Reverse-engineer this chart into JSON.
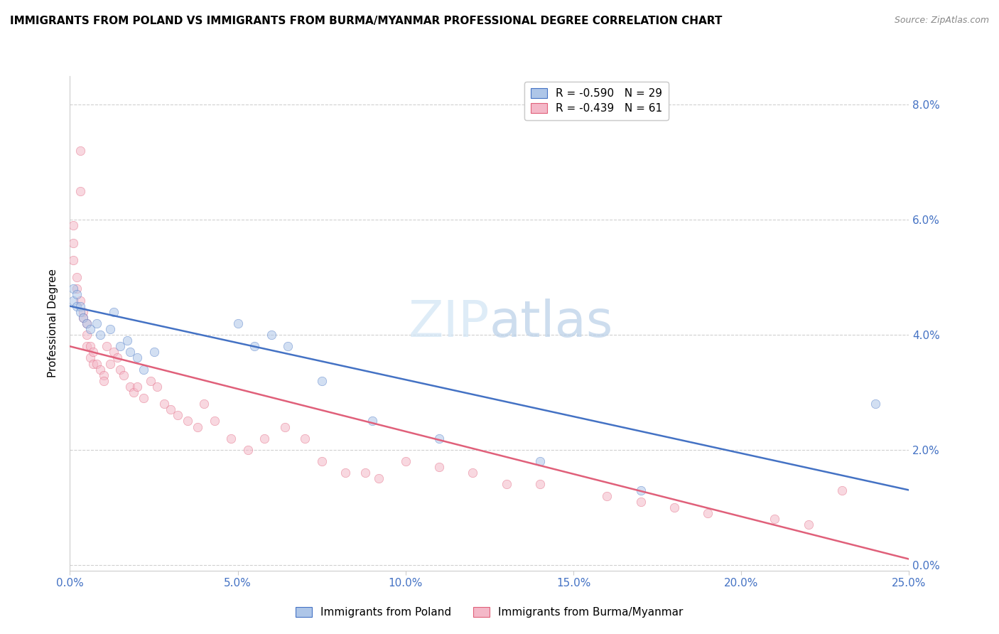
{
  "title": "IMMIGRANTS FROM POLAND VS IMMIGRANTS FROM BURMA/MYANMAR PROFESSIONAL DEGREE CORRELATION CHART",
  "source": "Source: ZipAtlas.com",
  "ylabel": "Professional Degree",
  "right_ytick_labels": [
    "0.0%",
    "2.0%",
    "4.0%",
    "6.0%",
    "8.0%"
  ],
  "right_ytick_values": [
    0.0,
    0.02,
    0.04,
    0.06,
    0.08
  ],
  "xlim": [
    0.0,
    0.25
  ],
  "ylim": [
    -0.001,
    0.085
  ],
  "xtick_labels": [
    "0.0%",
    "5.0%",
    "10.0%",
    "15.0%",
    "20.0%",
    "25.0%"
  ],
  "xtick_values": [
    0.0,
    0.05,
    0.1,
    0.15,
    0.2,
    0.25
  ],
  "legend_labels": [
    "R = -0.590   N = 29",
    "R = -0.439   N = 61"
  ],
  "legend_bottom_labels": [
    "Immigrants from Poland",
    "Immigrants from Burma/Myanmar"
  ],
  "blue_color": "#aec6e8",
  "blue_line_color": "#4472c4",
  "pink_color": "#f4b8c8",
  "pink_line_color": "#e0607a",
  "grid_color": "#d0d0d0",
  "watermark_zip": "ZIP",
  "watermark_atlas": "atlas",
  "poland_x": [
    0.001,
    0.001,
    0.002,
    0.002,
    0.003,
    0.003,
    0.004,
    0.005,
    0.006,
    0.008,
    0.009,
    0.012,
    0.013,
    0.015,
    0.017,
    0.018,
    0.02,
    0.022,
    0.025,
    0.05,
    0.055,
    0.06,
    0.065,
    0.075,
    0.09,
    0.11,
    0.14,
    0.17,
    0.24
  ],
  "poland_y": [
    0.048,
    0.046,
    0.047,
    0.045,
    0.045,
    0.044,
    0.043,
    0.042,
    0.041,
    0.042,
    0.04,
    0.041,
    0.044,
    0.038,
    0.039,
    0.037,
    0.036,
    0.034,
    0.037,
    0.042,
    0.038,
    0.04,
    0.038,
    0.032,
    0.025,
    0.022,
    0.018,
    0.013,
    0.028
  ],
  "burma_x": [
    0.001,
    0.001,
    0.001,
    0.002,
    0.002,
    0.003,
    0.003,
    0.003,
    0.004,
    0.004,
    0.005,
    0.005,
    0.005,
    0.006,
    0.006,
    0.007,
    0.007,
    0.008,
    0.009,
    0.01,
    0.01,
    0.011,
    0.012,
    0.013,
    0.014,
    0.015,
    0.016,
    0.018,
    0.019,
    0.02,
    0.022,
    0.024,
    0.026,
    0.028,
    0.03,
    0.032,
    0.035,
    0.038,
    0.04,
    0.043,
    0.048,
    0.053,
    0.058,
    0.064,
    0.07,
    0.075,
    0.082,
    0.088,
    0.092,
    0.1,
    0.11,
    0.12,
    0.13,
    0.14,
    0.16,
    0.17,
    0.18,
    0.19,
    0.21,
    0.22,
    0.23
  ],
  "burma_y": [
    0.059,
    0.056,
    0.053,
    0.05,
    0.048,
    0.072,
    0.065,
    0.046,
    0.044,
    0.043,
    0.042,
    0.04,
    0.038,
    0.038,
    0.036,
    0.037,
    0.035,
    0.035,
    0.034,
    0.033,
    0.032,
    0.038,
    0.035,
    0.037,
    0.036,
    0.034,
    0.033,
    0.031,
    0.03,
    0.031,
    0.029,
    0.032,
    0.031,
    0.028,
    0.027,
    0.026,
    0.025,
    0.024,
    0.028,
    0.025,
    0.022,
    0.02,
    0.022,
    0.024,
    0.022,
    0.018,
    0.016,
    0.016,
    0.015,
    0.018,
    0.017,
    0.016,
    0.014,
    0.014,
    0.012,
    0.011,
    0.01,
    0.009,
    0.008,
    0.007,
    0.013
  ],
  "poland_line_x0": 0.0,
  "poland_line_y0": 0.045,
  "poland_line_x1": 0.25,
  "poland_line_y1": 0.013,
  "burma_line_x0": 0.0,
  "burma_line_y0": 0.038,
  "burma_line_x1": 0.25,
  "burma_line_y1": 0.001,
  "title_fontsize": 11,
  "axis_label_fontsize": 11,
  "tick_fontsize": 11,
  "legend_fontsize": 11,
  "marker_size": 80,
  "marker_alpha": 0.55,
  "line_width": 1.8
}
